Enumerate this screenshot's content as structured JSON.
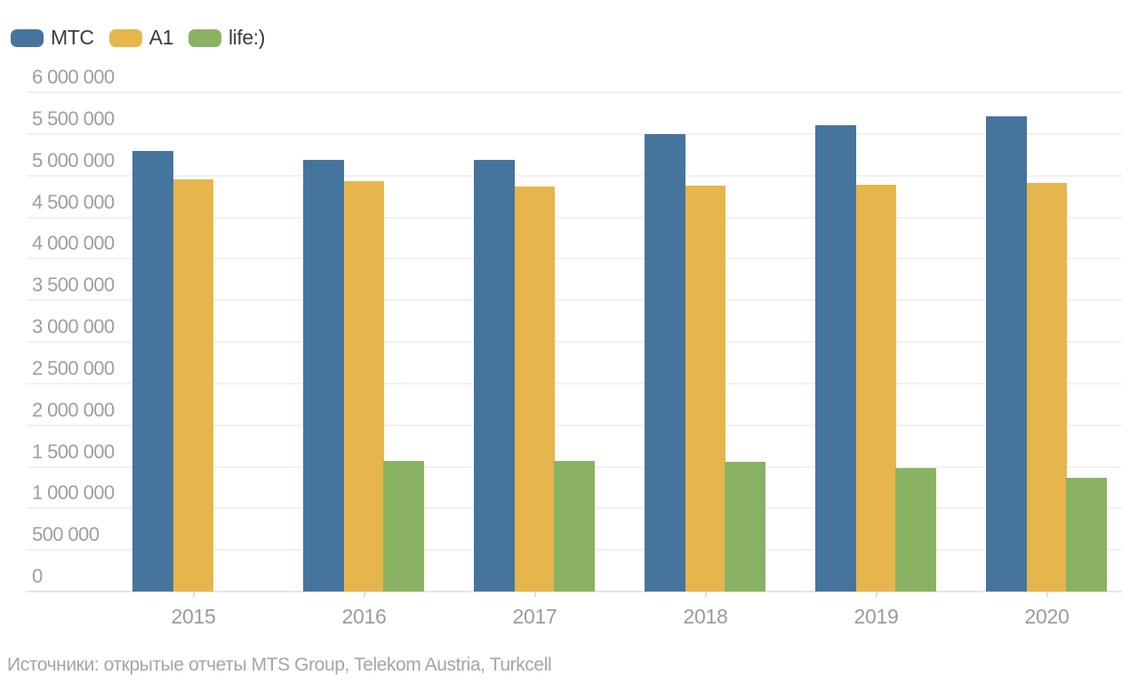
{
  "legend": {
    "items": [
      {
        "label": "МТС",
        "color": "#45749d"
      },
      {
        "label": "A1",
        "color": "#e6b54c"
      },
      {
        "label": "life:)",
        "color": "#8ab263"
      }
    ]
  },
  "source_note": "Источники: открытые отчеты MTS Group, Telekom Austria, Turkcell",
  "colors": {
    "gridline": "#f1f1f1",
    "baseline": "#e5e5e5",
    "axis_text": "#9e9e9e",
    "legend_text": "#3b3b3b",
    "source_text": "#a5a5a5",
    "background": "#ffffff"
  },
  "chart_data": {
    "type": "bar",
    "title": "",
    "xlabel": "",
    "ylabel": "",
    "categories": [
      "2015",
      "2016",
      "2017",
      "2018",
      "2019",
      "2020"
    ],
    "series": [
      {
        "name": "МТС",
        "color": "#45749d",
        "values": [
          5300000,
          5190000,
          5190000,
          5500000,
          5600000,
          5710000
        ]
      },
      {
        "name": "A1",
        "color": "#e6b54c",
        "values": [
          4950000,
          4930000,
          4870000,
          4880000,
          4890000,
          4910000
        ]
      },
      {
        "name": "life:)",
        "color": "#8ab263",
        "values": [
          null,
          1570000,
          1570000,
          1560000,
          1480000,
          1370000
        ]
      }
    ],
    "ylim": [
      0,
      6000000
    ],
    "ytick_step": 500000,
    "ytick_labels": [
      "0",
      "500 000",
      "1 000 000",
      "1 500 000",
      "2 000 000",
      "2 500 000",
      "3 000 000",
      "3 500 000",
      "4 000 000",
      "4 500 000",
      "5 000 000",
      "5 500 000",
      "6 000 000"
    ],
    "grid": "horizontal",
    "legend_position": "top-left"
  }
}
